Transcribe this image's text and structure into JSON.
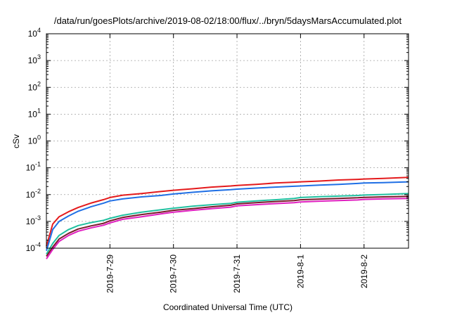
{
  "chart_data": {
    "type": "line",
    "title": "/data/run/goesPlots/archive/2019-08-02/18:00/flux/../bryn/5daysMarsAccumulated.plot",
    "xlabel": "Coordinated Universal Time (UTC)",
    "ylabel": "cSv",
    "x_tick_labels": [
      "2019-7-29",
      "2019-7-30",
      "2019-7-31",
      "2019-8-1",
      "2019-8-2"
    ],
    "x_tick_days": [
      1,
      2,
      3,
      4,
      5
    ],
    "xlim_days": [
      0,
      5.7
    ],
    "y_scale": "log",
    "ylim": [
      0.0001,
      10000
    ],
    "y_tick_values": [
      0.0001,
      0.001,
      0.01,
      0.1,
      1,
      10,
      100,
      1000,
      10000
    ],
    "y_tick_base": "10",
    "y_tick_exponents": [
      "-4",
      "-3",
      "-2",
      "-1",
      "0",
      "1",
      "2",
      "3",
      "4"
    ],
    "grid": true,
    "legend": "none",
    "x_days": [
      0.0,
      0.1,
      0.2,
      0.35,
      0.5,
      0.7,
      0.9,
      1.0,
      1.2,
      1.5,
      1.8,
      2.0,
      2.3,
      2.6,
      2.9,
      3.0,
      3.3,
      3.6,
      3.9,
      4.0,
      4.3,
      4.6,
      4.9,
      5.0,
      5.3,
      5.7
    ],
    "series": [
      {
        "color": "#e41a1c",
        "values": [
          0.00012,
          0.0008,
          0.0015,
          0.0023,
          0.0033,
          0.0048,
          0.0065,
          0.0078,
          0.0095,
          0.011,
          0.013,
          0.0145,
          0.0165,
          0.019,
          0.021,
          0.022,
          0.024,
          0.027,
          0.029,
          0.03,
          0.032,
          0.035,
          0.037,
          0.038,
          0.04,
          0.044
        ]
      },
      {
        "color": "#1f6fe5",
        "values": [
          8e-05,
          0.0005,
          0.001,
          0.0016,
          0.0024,
          0.0035,
          0.0048,
          0.0058,
          0.0069,
          0.0082,
          0.0093,
          0.0105,
          0.0122,
          0.0138,
          0.0152,
          0.016,
          0.0175,
          0.019,
          0.0205,
          0.021,
          0.0225,
          0.024,
          0.026,
          0.027,
          0.028,
          0.03
        ]
      },
      {
        "color": "#20c0a0",
        "values": [
          6e-05,
          0.00015,
          0.0003,
          0.0005,
          0.0007,
          0.0009,
          0.0011,
          0.0013,
          0.0017,
          0.0022,
          0.0027,
          0.0031,
          0.0037,
          0.0042,
          0.0047,
          0.0052,
          0.0058,
          0.0064,
          0.0072,
          0.0078,
          0.0083,
          0.0088,
          0.0093,
          0.0096,
          0.0101,
          0.011
        ]
      },
      {
        "color": "#7a1a2a",
        "values": [
          5e-05,
          0.00011,
          0.00022,
          0.00036,
          0.00052,
          0.00068,
          0.00085,
          0.00105,
          0.0014,
          0.0018,
          0.0022,
          0.0026,
          0.003,
          0.0035,
          0.004,
          0.0045,
          0.005,
          0.0055,
          0.006,
          0.0064,
          0.0068,
          0.0072,
          0.0076,
          0.0079,
          0.0082,
          0.0086
        ]
      },
      {
        "color": "#e020c0",
        "values": [
          4e-05,
          9e-05,
          0.00018,
          0.0003,
          0.00043,
          0.00057,
          0.00072,
          0.00088,
          0.0012,
          0.0015,
          0.0019,
          0.0022,
          0.0026,
          0.003,
          0.0034,
          0.0038,
          0.0042,
          0.0046,
          0.005,
          0.0053,
          0.0057,
          0.006,
          0.0063,
          0.0066,
          0.0069,
          0.0072
        ]
      }
    ]
  }
}
